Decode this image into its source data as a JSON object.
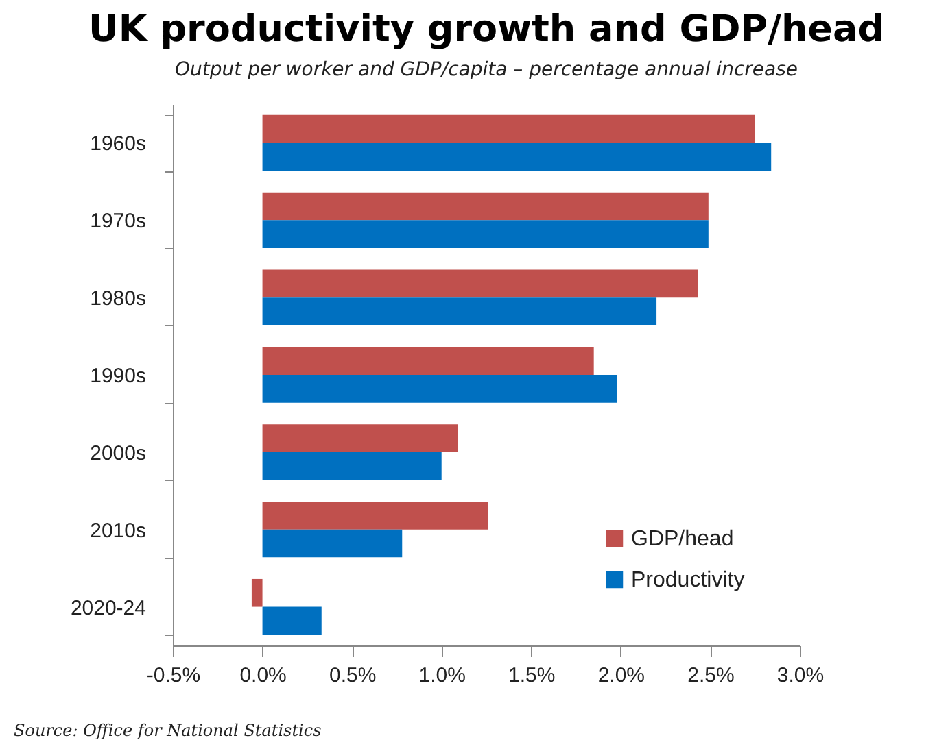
{
  "chart_data": {
    "type": "bar",
    "orientation": "horizontal",
    "title": "UK productivity growth and GDP/head",
    "subtitle": "Output per worker and GDP/capita – percentage annual increase",
    "categories": [
      "1960s",
      "1970s",
      "1980s",
      "1990s",
      "2000s",
      "2010s",
      "2020-24"
    ],
    "series": [
      {
        "name": "GDP/head",
        "color": "#c0504d",
        "values": [
          2.75,
          2.49,
          2.43,
          1.85,
          1.09,
          1.26,
          -0.06
        ]
      },
      {
        "name": "Productivity",
        "color": "#0070c0",
        "values": [
          2.84,
          2.49,
          2.2,
          1.98,
          1.0,
          0.78,
          0.33
        ]
      }
    ],
    "xlim": [
      -0.5,
      3.0
    ],
    "xticks": [
      {
        "value": -0.5,
        "label": "-0.5%"
      },
      {
        "value": 0,
        "label": "0.0%"
      },
      {
        "value": 0.5,
        "label": "0.5%"
      },
      {
        "value": 1.0,
        "label": "1.0%"
      },
      {
        "value": 1.5,
        "label": "1.5%"
      },
      {
        "value": 2.0,
        "label": "2.0%"
      },
      {
        "value": 2.5,
        "label": "2.5%"
      },
      {
        "value": 3.0,
        "label": "3.0%"
      }
    ],
    "grid": false,
    "legend": "bottom right",
    "annotations": [
      "Source:  Office for National Statistics"
    ]
  }
}
